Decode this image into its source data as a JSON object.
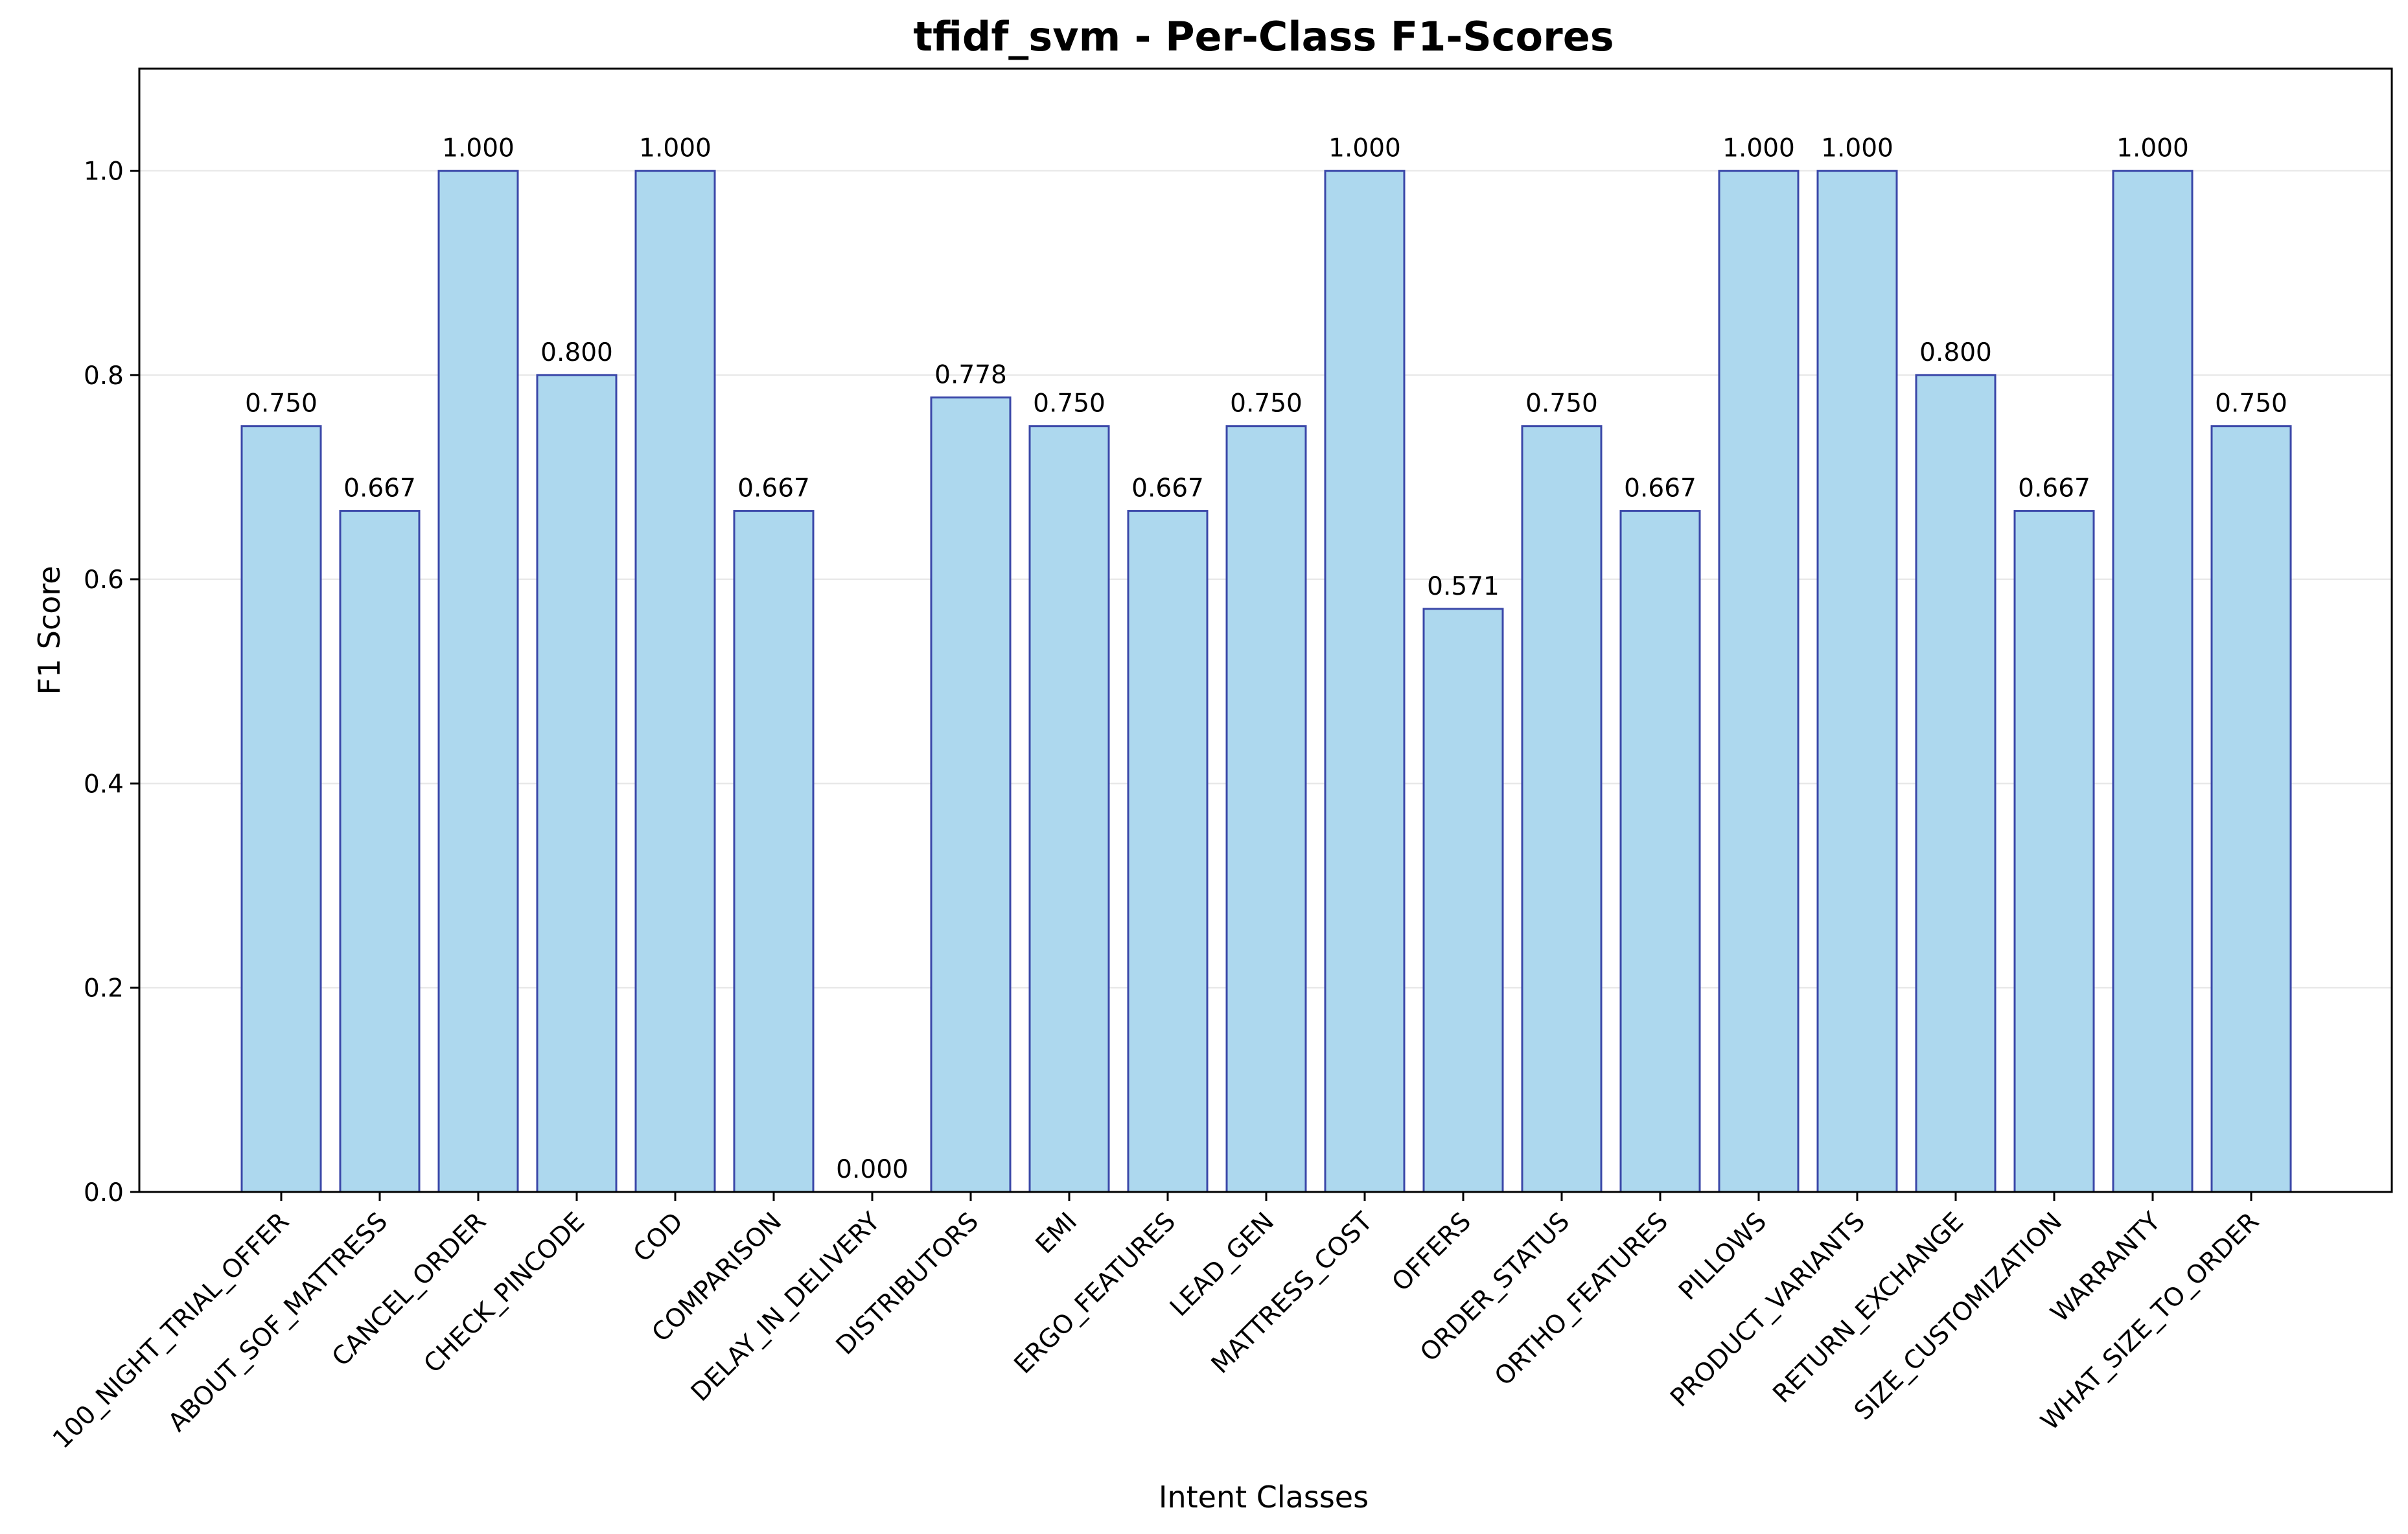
{
  "chart_data": {
    "type": "bar",
    "title": "tfidf_svm - Per-Class F1-Scores",
    "xlabel": "Intent Classes",
    "ylabel": "F1 Score",
    "categories": [
      "100_NIGHT_TRIAL_OFFER",
      "ABOUT_SOF_MATTRESS",
      "CANCEL_ORDER",
      "CHECK_PINCODE",
      "COD",
      "COMPARISON",
      "DELAY_IN_DELIVERY",
      "DISTRIBUTORS",
      "EMI",
      "ERGO_FEATURES",
      "LEAD_GEN",
      "MATTRESS_COST",
      "OFFERS",
      "ORDER_STATUS",
      "ORTHO_FEATURES",
      "PILLOWS",
      "PRODUCT_VARIANTS",
      "RETURN_EXCHANGE",
      "SIZE_CUSTOMIZATION",
      "WARRANTY",
      "WHAT_SIZE_TO_ORDER"
    ],
    "values": [
      0.75,
      0.667,
      1.0,
      0.8,
      1.0,
      0.667,
      0.0,
      0.778,
      0.75,
      0.667,
      0.75,
      1.0,
      0.571,
      0.75,
      0.667,
      1.0,
      1.0,
      0.8,
      0.667,
      1.0,
      0.75
    ],
    "data_labels": [
      "0.750",
      "0.667",
      "1.000",
      "0.800",
      "1.000",
      "0.667",
      "0.000",
      "0.778",
      "0.750",
      "0.667",
      "0.750",
      "1.000",
      "0.571",
      "0.750",
      "0.667",
      "1.000",
      "1.000",
      "0.800",
      "0.667",
      "1.000",
      "0.750"
    ],
    "ylim": [
      0,
      1.1
    ],
    "yticks": [
      "0.0",
      "0.2",
      "0.4",
      "0.6",
      "0.8",
      "1.0"
    ],
    "grid": "horizontal",
    "colors": {
      "bar_fill": "#add8ee",
      "bar_edge": "#3a47a8",
      "grid": "#e6e6e6",
      "axis": "#000000"
    }
  }
}
